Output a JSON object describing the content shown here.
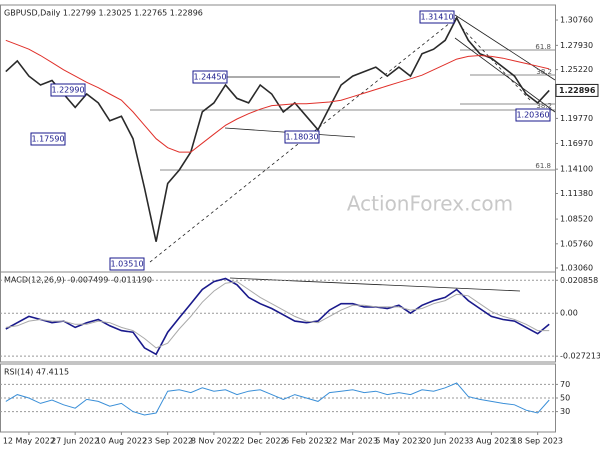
{
  "chart_data": [
    {
      "type": "line",
      "title": "GBPUSD,Daily  1.22799 1.23025 1.22765 1.22896",
      "categories": [
        null,
        null,
        "12 May 2022",
        null,
        null,
        null,
        "27 Jun 2022",
        null,
        null,
        null,
        "10 Aug 2022",
        null,
        null,
        null,
        "23 Sep 2022",
        null,
        null,
        null,
        "8 Nov 2022",
        null,
        null,
        null,
        "22 Dec 2022",
        null,
        null,
        null,
        "6 Feb 2023",
        null,
        null,
        null,
        "22 Mar 2023",
        null,
        null,
        null,
        "5 May 2023",
        null,
        null,
        null,
        "20 Jun 2023",
        null,
        null,
        null,
        "3 Aug 2023",
        null,
        null,
        null,
        "18 Sep 2023",
        null
      ],
      "series": [
        {
          "name": "GBPUSD",
          "color": "#2a2a2a",
          "values": [
            1.25,
            1.262,
            1.245,
            1.235,
            1.24,
            1.225,
            1.21,
            1.225,
            1.215,
            1.195,
            1.2,
            1.175,
            1.12,
            1.06,
            1.125,
            1.14,
            1.16,
            1.205,
            1.215,
            1.235,
            1.22,
            1.215,
            1.235,
            1.225,
            1.205,
            1.215,
            1.2,
            1.185,
            1.21,
            1.235,
            1.245,
            1.25,
            1.255,
            1.245,
            1.255,
            1.245,
            1.27,
            1.275,
            1.285,
            1.31,
            1.285,
            1.27,
            1.265,
            1.255,
            1.245,
            1.225,
            1.215,
            1.229
          ]
        },
        {
          "name": "MA",
          "color": "#e0302a",
          "values": [
            1.285,
            1.28,
            1.275,
            1.268,
            1.26,
            1.252,
            1.245,
            1.238,
            1.232,
            1.225,
            1.218,
            1.205,
            1.19,
            1.175,
            1.165,
            1.16,
            1.16,
            1.17,
            1.18,
            1.19,
            1.197,
            1.203,
            1.208,
            1.212,
            1.213,
            1.214,
            1.214,
            1.215,
            1.216,
            1.218,
            1.222,
            1.226,
            1.23,
            1.234,
            1.238,
            1.242,
            1.246,
            1.252,
            1.258,
            1.264,
            1.267,
            1.268,
            1.267,
            1.265,
            1.262,
            1.259,
            1.256,
            1.253
          ]
        }
      ],
      "ylim": [
        1.0261,
        1.3244
      ],
      "yticks": [
        {
          "value": 1.3076,
          "label": "1.30760"
        },
        {
          "value": 1.2793,
          "label": "1.27930"
        },
        {
          "value": 1.2522,
          "label": "1.25220"
        },
        {
          "value": 1.2251,
          "label": "1.22510"
        },
        {
          "value": 1.1977,
          "label": "1.19770"
        },
        {
          "value": 1.1697,
          "label": "1.16970"
        },
        {
          "value": 1.141,
          "label": "1.14100"
        },
        {
          "value": 1.1138,
          "label": "1.11380"
        },
        {
          "value": 1.0852,
          "label": "1.08520"
        },
        {
          "value": 1.0576,
          "label": "1.05760"
        },
        {
          "value": 1.0306,
          "label": "1.03060"
        }
      ],
      "last": 1.22896,
      "grid": false,
      "annotations": [
        "1.31410",
        "1.24450",
        "1.22990",
        "1.17590",
        "1.18030",
        "1.20360",
        "1.03510"
      ],
      "fib_labels": [
        "61.8",
        "38.2",
        "38.2",
        "61.8"
      ],
      "watermark": "ActionForex.com"
    },
    {
      "type": "line",
      "title": "MACD(12,26,9) -0.007499 -0.011190",
      "series": [
        {
          "name": "MACD",
          "color": "#1a1a8c",
          "values": [
            -0.01,
            -0.006,
            -0.002,
            -0.004,
            -0.006,
            -0.005,
            -0.009,
            -0.006,
            -0.004,
            -0.008,
            -0.011,
            -0.012,
            -0.022,
            -0.026,
            -0.012,
            -0.003,
            0.006,
            0.015,
            0.02,
            0.022,
            0.018,
            0.01,
            0.006,
            0.003,
            -0.001,
            -0.005,
            -0.006,
            -0.005,
            0.002,
            0.006,
            0.006,
            0.004,
            0.004,
            0.003,
            0.005,
            0.0,
            0.005,
            0.008,
            0.01,
            0.015,
            0.008,
            0.003,
            -0.002,
            -0.004,
            -0.005,
            -0.009,
            -0.013,
            -0.007
          ]
        },
        {
          "name": "Signal",
          "color": "#aaaaaa",
          "values": [
            -0.009,
            -0.008,
            -0.005,
            -0.004,
            -0.005,
            -0.005,
            -0.007,
            -0.007,
            -0.005,
            -0.006,
            -0.009,
            -0.011,
            -0.016,
            -0.022,
            -0.019,
            -0.01,
            -0.002,
            0.007,
            0.014,
            0.019,
            0.02,
            0.015,
            0.01,
            0.006,
            0.002,
            -0.002,
            -0.005,
            -0.006,
            -0.002,
            0.002,
            0.005,
            0.005,
            0.004,
            0.004,
            0.004,
            0.002,
            0.003,
            0.006,
            0.008,
            0.012,
            0.011,
            0.006,
            0.001,
            -0.002,
            -0.004,
            -0.007,
            -0.011,
            -0.011
          ]
        }
      ],
      "ylim": [
        -0.0309,
        0.0261
      ],
      "yticks": [
        0.020858,
        {
          "value": 0,
          "label": "0.00"
        },
        -0.027213
      ],
      "grid": true
    },
    {
      "type": "line",
      "title": "RSI(14) 47.4115",
      "series": [
        {
          "name": "RSI",
          "color": "#3a8fd8",
          "values": [
            45,
            55,
            50,
            42,
            47,
            40,
            35,
            48,
            45,
            38,
            42,
            30,
            25,
            28,
            60,
            62,
            58,
            65,
            60,
            62,
            55,
            60,
            62,
            55,
            48,
            55,
            50,
            45,
            58,
            60,
            62,
            58,
            60,
            55,
            58,
            55,
            62,
            60,
            65,
            72,
            52,
            48,
            45,
            42,
            40,
            32,
            28,
            47
          ]
        }
      ],
      "ylim": [
        0,
        100
      ],
      "yticks": [
        70,
        50,
        30
      ],
      "grid": true
    }
  ]
}
